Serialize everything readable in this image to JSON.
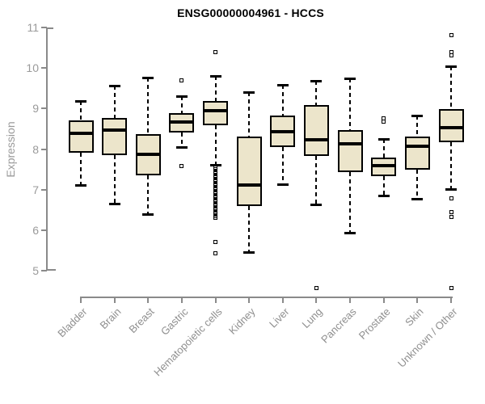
{
  "title": "ENSG00000004961 - HCCS",
  "ylabel": "Expression",
  "colors": {
    "box_fill": "#ece5cb",
    "box_border": "#000000",
    "median": "#000000",
    "whisker": "#000000",
    "axis_line": "#8a8a8a",
    "tick_label": "#9a9a9a",
    "title": "#000000"
  },
  "chart_data": {
    "type": "boxplot",
    "title": "ENSG00000004961 - HCCS",
    "xlabel": "",
    "ylabel": "Expression",
    "ylim": [
      5,
      11
    ],
    "yticks": [
      5,
      6,
      7,
      8,
      9,
      10,
      11
    ],
    "grid": false,
    "legend": false,
    "categories": [
      "Bladder",
      "Brain",
      "Breast",
      "Gastric",
      "Hematopoietic cells",
      "Kidney",
      "Liver",
      "Lung",
      "Pancreas",
      "Prostate",
      "Skin",
      "Unknown / Other"
    ],
    "series": [
      {
        "name": "Bladder",
        "low": 7.12,
        "q1": 7.92,
        "median": 8.38,
        "q3": 8.7,
        "high": 9.18,
        "outliers": []
      },
      {
        "name": "Brain",
        "low": 6.65,
        "q1": 7.86,
        "median": 8.46,
        "q3": 8.76,
        "high": 9.56,
        "outliers": []
      },
      {
        "name": "Breast",
        "low": 6.4,
        "q1": 7.36,
        "median": 7.88,
        "q3": 8.36,
        "high": 9.76,
        "outliers": []
      },
      {
        "name": "Gastric",
        "low": 8.05,
        "q1": 8.4,
        "median": 8.66,
        "q3": 8.88,
        "high": 9.3,
        "outliers": [
          9.7,
          7.58
        ]
      },
      {
        "name": "Hematopoietic cells",
        "low": 7.62,
        "q1": 8.58,
        "median": 8.95,
        "q3": 9.18,
        "high": 9.8,
        "outliers": [
          10.4,
          7.55,
          7.5,
          7.45,
          7.4,
          7.35,
          7.3,
          7.25,
          7.2,
          7.15,
          7.1,
          7.05,
          7.0,
          6.95,
          6.9,
          6.85,
          6.8,
          6.75,
          6.7,
          6.65,
          6.6,
          6.55,
          6.5,
          6.45,
          6.4,
          6.35,
          6.3,
          5.7,
          5.43
        ]
      },
      {
        "name": "Kidney",
        "low": 5.46,
        "q1": 6.6,
        "median": 7.12,
        "q3": 8.3,
        "high": 9.4,
        "outliers": []
      },
      {
        "name": "Liver",
        "low": 7.14,
        "q1": 8.04,
        "median": 8.42,
        "q3": 8.82,
        "high": 9.58,
        "outliers": []
      },
      {
        "name": "Lung",
        "low": 6.64,
        "q1": 7.84,
        "median": 8.22,
        "q3": 9.08,
        "high": 9.68,
        "outliers": [
          4.58
        ]
      },
      {
        "name": "Pancreas",
        "low": 5.94,
        "q1": 7.44,
        "median": 8.12,
        "q3": 8.46,
        "high": 9.75,
        "outliers": []
      },
      {
        "name": "Prostate",
        "low": 6.86,
        "q1": 7.34,
        "median": 7.6,
        "q3": 7.8,
        "high": 8.24,
        "outliers": [
          8.76,
          8.68
        ]
      },
      {
        "name": "Skin",
        "low": 6.78,
        "q1": 7.5,
        "median": 8.06,
        "q3": 8.3,
        "high": 8.82,
        "outliers": []
      },
      {
        "name": "Unknown / Other",
        "low": 7.02,
        "q1": 8.16,
        "median": 8.52,
        "q3": 8.98,
        "high": 10.04,
        "outliers": [
          10.82,
          10.4,
          10.32,
          6.78,
          6.44,
          6.33,
          4.58
        ]
      }
    ]
  }
}
